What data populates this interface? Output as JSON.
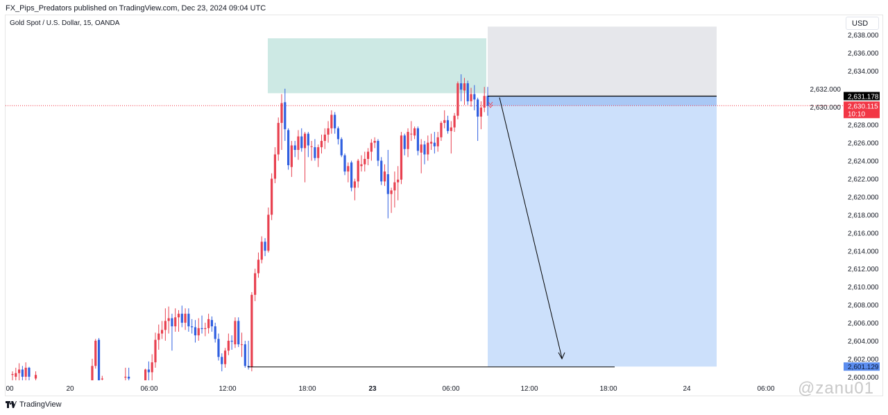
{
  "header": {
    "published": "FX_Pips_Predators published on TradingView.com, Dec 23, 2024 09:04 UTC"
  },
  "symbol": {
    "title": "Gold Spot / U.S. Dollar, 15, OANDA"
  },
  "currency": "USD",
  "footer": {
    "logo_text": "TradingView"
  },
  "watermark": "@zanu01",
  "colors": {
    "up": "#e8404f",
    "down": "#2f5fe0",
    "target_zone": "#cde9e4",
    "stop_zone": "#e6e7eb",
    "profit_zone": "#cce0fb",
    "last_price": "#f23645",
    "entry_label": "#000000",
    "target_label": "#5b8def"
  },
  "price_axis": {
    "min": 2599.6,
    "max": 2639,
    "ticks": [
      "2,600.000",
      "2,602.000",
      "2,604.000",
      "2,606.000",
      "2,608.000",
      "2,610.000",
      "2,612.000",
      "2,614.000",
      "2,616.000",
      "2,618.000",
      "2,620.000",
      "2,622.000",
      "2,624.000",
      "2,626.000",
      "2,628.000",
      "2,630.000",
      "2,632.000",
      "2,634.000",
      "2,636.000",
      "2,638.000"
    ],
    "tick_values": [
      2600,
      2602,
      2604,
      2606,
      2608,
      2610,
      2612,
      2614,
      2616,
      2618,
      2620,
      2622,
      2624,
      2626,
      2628,
      2630,
      2632,
      2634,
      2636,
      2638
    ],
    "entry_label": "2,631.178",
    "entry_value": 2631.178,
    "last_label": "2,630.115",
    "last_value": 2630.115,
    "countdown": "10:10",
    "target_label": "2,601.129",
    "target_value": 2601.129
  },
  "time_axis": [
    {
      "label": "00",
      "bold": false
    },
    {
      "label": "20",
      "bold": false
    },
    {
      "label": "06:00",
      "bold": false
    },
    {
      "label": "12:00",
      "bold": false
    },
    {
      "label": "18:00",
      "bold": false
    },
    {
      "label": "23",
      "bold": true
    },
    {
      "label": "06:00",
      "bold": false
    },
    {
      "label": "12:00",
      "bold": false
    },
    {
      "label": "18:00",
      "bold": false
    },
    {
      "label": "24",
      "bold": false
    },
    {
      "label": "06:00",
      "bold": false
    }
  ],
  "position": {
    "type": "short",
    "entry": 2631.178,
    "stop_top": 2638.9,
    "target": 2601.129
  },
  "supply_zone": {
    "top": 2637.6,
    "bottom": 2631.5
  },
  "candles": [
    [
      2600.2,
      2600.6,
      2599.6,
      2600.3
    ],
    [
      2600.0,
      2601.0,
      2599.6,
      2600.4
    ],
    [
      2600.4,
      2601.5,
      2599.6,
      2600.8
    ],
    [
      2600.8,
      2601.2,
      2599.6,
      2600.0
    ],
    [
      2600.0,
      2601.6,
      2599.6,
      2601.0
    ],
    [
      2601.0,
      2601.1,
      2599.6,
      2600.0
    ],
    null,
    [
      2599.8,
      2600.6,
      2599.6,
      2600.2
    ],
    null,
    null,
    null,
    null,
    null,
    null,
    null,
    null,
    null,
    null,
    null,
    null,
    null,
    null,
    null,
    null,
    [
      2599.6,
      2602.0,
      2599.6,
      2601.2
    ],
    [
      2601.2,
      2604.2,
      2600.9,
      2604.0
    ],
    [
      2604.1,
      2604.3,
      2599.6,
      2599.6
    ],
    [
      2599.7,
      2600.1,
      2599.6,
      2599.8
    ],
    null,
    null,
    null,
    null,
    null,
    null,
    [
      2599.9,
      2601.0,
      2599.6,
      2600.0
    ],
    [
      2600.0,
      2601.0,
      2599.6,
      2599.8
    ],
    null,
    null,
    null,
    null,
    [
      2599.6,
      2600.9,
      2599.6,
      2600.8
    ],
    [
      2600.8,
      2601.7,
      2599.6,
      2600.5
    ],
    [
      2600.5,
      2602.5,
      2599.6,
      2601.6
    ],
    [
      2601.6,
      2604.9,
      2601.0,
      2604.1
    ],
    [
      2604.1,
      2605.8,
      2603.0,
      2604.8
    ],
    [
      2604.8,
      2606.2,
      2604.2,
      2605.2
    ],
    [
      2605.2,
      2607.6,
      2604.0,
      2606.2
    ],
    [
      2606.2,
      2607.8,
      2604.8,
      2606.5
    ],
    [
      2606.5,
      2607.0,
      2602.9,
      2605.6
    ],
    [
      2605.6,
      2607.6,
      2605.0,
      2606.6
    ],
    [
      2606.6,
      2607.4,
      2605.0,
      2607.0
    ],
    [
      2607.0,
      2607.9,
      2605.5,
      2606.0
    ],
    [
      2606.0,
      2607.6,
      2605.2,
      2607.0
    ],
    [
      2607.0,
      2607.6,
      2605.0,
      2605.6
    ],
    [
      2605.6,
      2606.4,
      2604.8,
      2605.5
    ],
    [
      2605.5,
      2606.3,
      2603.8,
      2604.6
    ],
    [
      2604.6,
      2606.5,
      2604.0,
      2605.4
    ],
    [
      2605.4,
      2606.8,
      2604.8,
      2605.3
    ],
    [
      2605.3,
      2606.0,
      2604.5,
      2605.4
    ],
    [
      2605.4,
      2607.0,
      2604.8,
      2606.4
    ],
    [
      2606.3,
      2606.7,
      2605.0,
      2605.6
    ],
    [
      2605.6,
      2606.0,
      2603.8,
      2604.2
    ],
    [
      2604.2,
      2604.8,
      2601.8,
      2602.2
    ],
    [
      2602.2,
      2602.6,
      2600.6,
      2601.4
    ],
    [
      2601.4,
      2603.2,
      2601.0,
      2602.9
    ],
    [
      2602.9,
      2604.8,
      2602.4,
      2604.0
    ],
    [
      2604.0,
      2604.6,
      2603.0,
      2603.9
    ],
    [
      2603.6,
      2606.6,
      2603.2,
      2606.2
    ],
    [
      2606.2,
      2606.6,
      2603.3,
      2603.6
    ],
    [
      2603.6,
      2604.9,
      2602.2,
      2603.6
    ],
    [
      2603.6,
      2604.0,
      2601.0,
      2601.2
    ],
    [
      2601.2,
      2604.0,
      2600.8,
      2601.1
    ],
    [
      2601.1,
      2609.4,
      2600.6,
      2609.1
    ],
    [
      2609.1,
      2612.0,
      2608.4,
      2611.5
    ],
    [
      2611.5,
      2613.8,
      2611.0,
      2613.0
    ],
    [
      2613.0,
      2615.6,
      2612.6,
      2615.0
    ],
    [
      2615.0,
      2615.4,
      2613.4,
      2614.0
    ],
    [
      2614.0,
      2618.8,
      2613.8,
      2618.0
    ],
    [
      2618.0,
      2622.6,
      2617.4,
      2622.0
    ],
    [
      2622.0,
      2625.5,
      2621.5,
      2624.7
    ],
    [
      2624.7,
      2628.8,
      2624.0,
      2628.2
    ],
    [
      2628.2,
      2631.4,
      2625.2,
      2630.4
    ],
    [
      2630.5,
      2632.0,
      2626.2,
      2627.5
    ],
    [
      2627.4,
      2627.6,
      2623.0,
      2623.5
    ],
    [
      2623.3,
      2626.2,
      2622.2,
      2625.7
    ],
    [
      2625.7,
      2626.2,
      2624.4,
      2625.2
    ],
    [
      2625.2,
      2627.4,
      2624.1,
      2626.7
    ],
    [
      2626.7,
      2627.6,
      2625.0,
      2625.4
    ],
    [
      2625.4,
      2627.2,
      2621.6,
      2627.0
    ],
    [
      2627.0,
      2627.2,
      2624.4,
      2625.7
    ],
    [
      2625.6,
      2626.2,
      2624.0,
      2625.6
    ],
    [
      2625.5,
      2626.4,
      2624.0,
      2624.3
    ],
    [
      2624.3,
      2625.8,
      2623.3,
      2625.5
    ],
    [
      2625.5,
      2626.9,
      2624.8,
      2626.2
    ],
    [
      2626.2,
      2627.6,
      2625.3,
      2626.9
    ],
    [
      2626.9,
      2628.4,
      2626.0,
      2627.6
    ],
    [
      2627.6,
      2629.6,
      2627.0,
      2629.1
    ],
    [
      2629.1,
      2629.4,
      2627.0,
      2627.6
    ],
    [
      2627.6,
      2627.8,
      2625.8,
      2626.4
    ],
    [
      2626.4,
      2626.6,
      2624.4,
      2624.6
    ],
    [
      2624.6,
      2624.8,
      2622.4,
      2622.8
    ],
    [
      2622.8,
      2623.8,
      2621.6,
      2623.4
    ],
    [
      2623.8,
      2624.0,
      2620.6,
      2621.0
    ],
    [
      2621.0,
      2622.0,
      2619.6,
      2621.7
    ],
    [
      2621.7,
      2624.2,
      2621.0,
      2624.0
    ],
    [
      2623.4,
      2624.6,
      2622.8,
      2623.6
    ],
    [
      2623.6,
      2625.0,
      2622.8,
      2624.2
    ],
    [
      2624.2,
      2625.4,
      2623.5,
      2625.0
    ],
    [
      2625.0,
      2626.4,
      2624.0,
      2626.0
    ],
    [
      2626.0,
      2626.6,
      2625.4,
      2626.2
    ],
    [
      2626.2,
      2626.4,
      2623.4,
      2624.0
    ],
    [
      2624.0,
      2624.4,
      2621.3,
      2621.7
    ],
    [
      2621.7,
      2623.6,
      2621.2,
      2622.8
    ],
    [
      2622.5,
      2625.2,
      2617.6,
      2620.3
    ],
    [
      2620.3,
      2621.0,
      2618.2,
      2620.7
    ],
    [
      2620.7,
      2622.8,
      2618.8,
      2621.6
    ],
    [
      2621.6,
      2623.4,
      2619.6,
      2621.9
    ],
    [
      2621.9,
      2627.2,
      2621.4,
      2626.8
    ],
    [
      2626.8,
      2627.0,
      2624.6,
      2625.3
    ],
    [
      2625.3,
      2627.6,
      2624.4,
      2627.2
    ],
    [
      2627.0,
      2628.4,
      2626.2,
      2627.0
    ],
    [
      2626.8,
      2627.8,
      2626.4,
      2627.6
    ],
    [
      2627.6,
      2627.8,
      2624.6,
      2625.1
    ],
    [
      2624.9,
      2626.4,
      2622.6,
      2625.8
    ],
    [
      2625.8,
      2626.2,
      2623.6,
      2624.7
    ],
    [
      2624.7,
      2626.8,
      2624.0,
      2626.0
    ],
    [
      2625.9,
      2627.0,
      2625.2,
      2626.1
    ],
    [
      2626.0,
      2627.2,
      2624.8,
      2625.6
    ],
    [
      2625.6,
      2627.2,
      2625.0,
      2626.6
    ],
    [
      2626.6,
      2628.4,
      2626.2,
      2628.2
    ],
    [
      2628.2,
      2629.6,
      2627.6,
      2628.5
    ],
    [
      2628.5,
      2629.0,
      2627.0,
      2627.3
    ],
    [
      2627.3,
      2628.4,
      2624.8,
      2627.7
    ],
    [
      2627.7,
      2629.3,
      2627.2,
      2629.0
    ],
    [
      2629.0,
      2632.8,
      2628.6,
      2632.6
    ],
    [
      2632.6,
      2633.6,
      2630.6,
      2631.9
    ],
    [
      2631.8,
      2633.2,
      2630.2,
      2632.6
    ],
    [
      2632.6,
      2632.9,
      2630.2,
      2630.6
    ],
    [
      2630.6,
      2632.1,
      2630.0,
      2631.4
    ],
    [
      2631.4,
      2632.4,
      2629.6,
      2630.8
    ],
    [
      2630.8,
      2631.0,
      2626.2,
      2628.9
    ],
    [
      2628.9,
      2630.6,
      2627.5,
      2629.9
    ],
    [
      2629.9,
      2632.2,
      2629.4,
      2631.2
    ],
    [
      2631.2,
      2632.2,
      2629.0,
      2630.1
    ]
  ]
}
